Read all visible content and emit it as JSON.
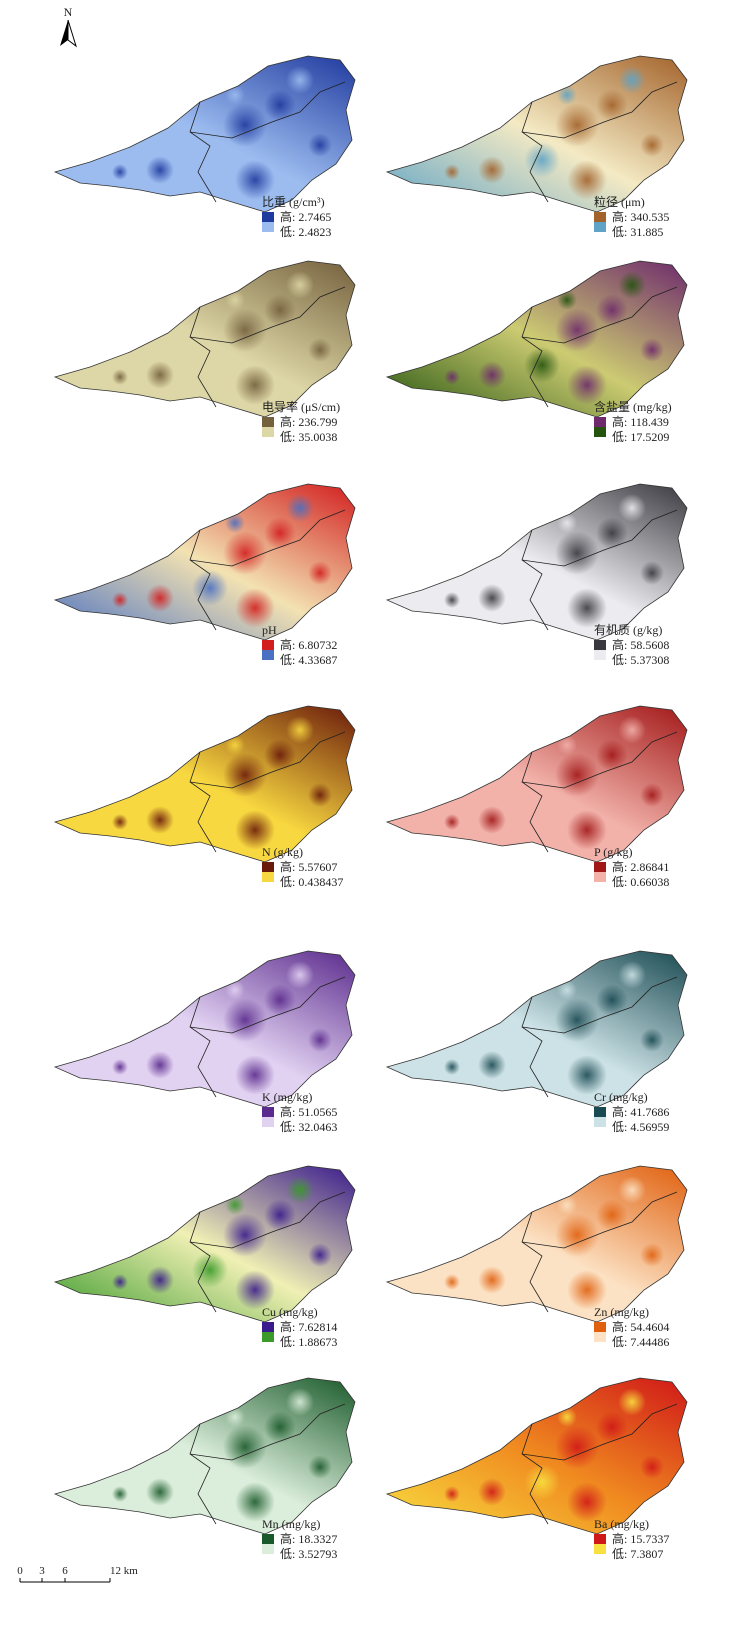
{
  "north": "N",
  "scale": [
    "0",
    "3",
    "6",
    "12 km"
  ],
  "panels": [
    {
      "title": "比重 (g/cm³)",
      "high": "高: 2.7465",
      "low": "低: 2.4823",
      "high_color": "#1f3a9e",
      "low_color": "#9cbcf0"
    },
    {
      "title": "粒径 (μm)",
      "high": "高: 340.535",
      "low": "低: 31.885",
      "high_color": "#a3622a",
      "mid_color": "#f4eac4",
      "low_color": "#5fa3c6"
    },
    {
      "title": "电导率 (μS/cm)",
      "high": "高: 236.799",
      "low": "低: 35.0038",
      "high_color": "#74603c",
      "low_color": "#ddd6a6"
    },
    {
      "title": "含盐量 (mg/kg)",
      "high": "高: 118.439",
      "low": "低: 17.5209",
      "high_color": "#6e2a6c",
      "mid_color": "#cccb72",
      "low_color": "#24540e"
    },
    {
      "title": "pH",
      "high": "高: 6.80732",
      "low": "低: 4.33687",
      "high_color": "#d21e1e",
      "mid_color": "#f3e2b2",
      "low_color": "#4a70c2"
    },
    {
      "title": "有机质 (g/kg)",
      "high": "高: 58.5608",
      "low": "低: 5.37308",
      "high_color": "#38383e",
      "low_color": "#ececf0"
    },
    {
      "title": "N (g/kg)",
      "high": "高: 5.57607",
      "low": "低: 0.438437",
      "high_color": "#6a1a0a",
      "low_color": "#f8d840"
    },
    {
      "title": "P (g/kg)",
      "high": "高: 2.86841",
      "low": "低: 0.66038",
      "high_color": "#a21818",
      "low_color": "#f2b2aa"
    },
    {
      "title": "K (mg/kg)",
      "high": "高: 51.0565",
      "low": "低: 32.0463",
      "high_color": "#5a2a8c",
      "low_color": "#e2d2f2"
    },
    {
      "title": "Cr (mg/kg)",
      "high": "高: 41.7686",
      "low": "低: 4.56959",
      "high_color": "#1a4a52",
      "low_color": "#cce2e6"
    },
    {
      "title": "Cu (mg/kg)",
      "high": "高: 7.62814",
      "low": "低: 1.88673",
      "high_color": "#3a1a8c",
      "mid_color": "#f0f0b4",
      "low_color": "#3a9a2a"
    },
    {
      "title": "Zn (mg/kg)",
      "high": "高: 54.4604",
      "low": "低: 7.44486",
      "high_color": "#e0600e",
      "low_color": "#fce2c4"
    },
    {
      "title": "Mn (mg/kg)",
      "high": "高: 18.3327",
      "low": "低: 3.52793",
      "high_color": "#1a5a2a",
      "low_color": "#dbeedb"
    },
    {
      "title": "Ba (mg/kg)",
      "high": "高: 15.7337",
      "low": "低: 7.3807",
      "high_color": "#d01818",
      "mid_color": "#f08a20",
      "low_color": "#f8e040"
    }
  ]
}
